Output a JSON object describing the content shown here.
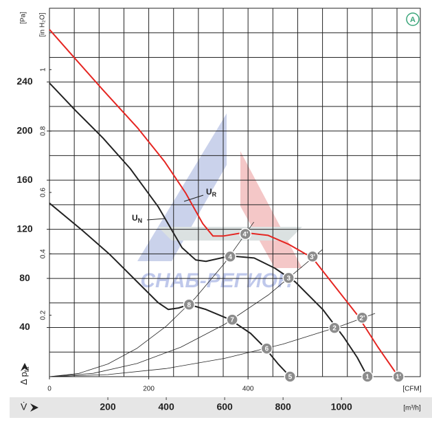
{
  "chart_data": {
    "type": "line",
    "y_unit": "[Pa]",
    "y2_unit": "[in H₂O]",
    "ylabel_symbol": "Δ p",
    "ylabel_sub": "fa",
    "xlabel_symbol": "V̇",
    "x_unit": "[m³/h]",
    "x2_unit": "[CFM]",
    "badge": "A",
    "watermark": "СНАБ-РЕГИОН",
    "xlim": [
      0,
      1270
    ],
    "xticks": [
      200,
      400,
      600,
      800,
      1000
    ],
    "x2lim": [
      0,
      747
    ],
    "x2ticks": [
      0,
      200,
      400
    ],
    "ylim": [
      0,
      300
    ],
    "yticks": [
      40,
      80,
      120,
      160,
      200,
      240
    ],
    "y2lim": [
      0,
      1.2
    ],
    "y2ticks": [
      0.2,
      0.4,
      0.6,
      0.8,
      1.0
    ],
    "grid": true,
    "series": [
      {
        "name": "U",
        "name_sub": "R",
        "color": "#e52521",
        "line_width": 2,
        "x": [
          0,
          89,
          183,
          301,
          395,
          466,
          525,
          560,
          595,
          666,
          748,
          819,
          901,
          984,
          1054,
          1125,
          1195
        ],
        "values": [
          282.7,
          258.7,
          233.5,
          202.8,
          174.9,
          149.7,
          124.6,
          114.5,
          114.5,
          117.3,
          115.1,
          107.8,
          96.6,
          71.5,
          50.3,
          24.0,
          0
        ]
      },
      {
        "name": "U",
        "name_sub": "N",
        "color": "#222222",
        "line_width": 2,
        "x": [
          0,
          89,
          183,
          277,
          372,
          454,
          501,
          536,
          619,
          701,
          772,
          842,
          936,
          1007,
          1054,
          1089
        ],
        "values": [
          239.1,
          216.8,
          194.4,
          169.3,
          138.5,
          105.0,
          95.0,
          93.9,
          98.3,
          96.6,
          88.3,
          77.1,
          54.7,
          32.4,
          15.6,
          0
        ]
      },
      {
        "color": "#222222",
        "line_width": 2,
        "x": [
          0,
          113,
          207,
          301,
          372,
          407,
          442,
          478,
          536,
          619,
          689,
          736,
          784,
          824
        ],
        "values": [
          141.3,
          119.0,
          99.4,
          77.1,
          60.3,
          54.7,
          55.9,
          58.7,
          54.7,
          46.4,
          35.2,
          24.0,
          10.1,
          0
        ]
      },
      {
        "color": "#222222",
        "line_width": 0.8,
        "x": [
          0,
          100,
          200,
          300,
          400,
          500,
          600,
          700
        ],
        "values": [
          0,
          2.6,
          10.3,
          23.1,
          41.1,
          64.2,
          92.5,
          125.9
        ]
      },
      {
        "color": "#222222",
        "line_width": 0.8,
        "x": [
          0,
          150,
          300,
          450,
          600,
          750,
          935
        ],
        "values": [
          0,
          2.7,
          10.7,
          24.0,
          42.6,
          66.6,
          103.5
        ]
      },
      {
        "color": "#222222",
        "line_width": 0.8,
        "x": [
          0,
          200,
          400,
          600,
          800,
          1000,
          1115
        ],
        "values": [
          0,
          1.7,
          6.6,
          14.9,
          26.5,
          41.4,
          51.5
        ]
      }
    ],
    "points": [
      {
        "label": "1",
        "x": 1089,
        "y": 0
      },
      {
        "label": "1'",
        "x": 1195,
        "y": 0
      },
      {
        "label": "2",
        "x": 976,
        "y": 39.7
      },
      {
        "label": "2'",
        "x": 1071,
        "y": 48.0
      },
      {
        "label": "3",
        "x": 819,
        "y": 80.4
      },
      {
        "label": "3'",
        "x": 901,
        "y": 97.8
      },
      {
        "label": "4",
        "x": 619,
        "y": 97.8
      },
      {
        "label": "4'",
        "x": 671,
        "y": 116.2
      },
      {
        "label": "5",
        "x": 824,
        "y": 0
      },
      {
        "label": "6",
        "x": 744,
        "y": 22.9
      },
      {
        "label": "7",
        "x": 626,
        "y": 46.4
      },
      {
        "label": "8",
        "x": 478,
        "y": 58.7
      }
    ]
  }
}
